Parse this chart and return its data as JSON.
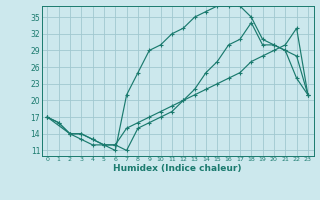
{
  "xlabel": "Humidex (Indice chaleur)",
  "bg_color": "#cce8ed",
  "grid_color": "#a0c8d0",
  "line_color": "#1a7a6e",
  "xlim": [
    -0.5,
    23.5
  ],
  "ylim": [
    10,
    37
  ],
  "yticks": [
    11,
    14,
    17,
    20,
    23,
    26,
    29,
    32,
    35
  ],
  "xticks": [
    0,
    1,
    2,
    3,
    4,
    5,
    6,
    7,
    8,
    9,
    10,
    11,
    12,
    13,
    14,
    15,
    16,
    17,
    18,
    19,
    20,
    21,
    22,
    23
  ],
  "line1_x": [
    0,
    1,
    2,
    3,
    4,
    5,
    6,
    7,
    8,
    9,
    10,
    11,
    12,
    13,
    14,
    15,
    16,
    17,
    18,
    19,
    20,
    21,
    22,
    23
  ],
  "line1_y": [
    17,
    16,
    14,
    14,
    13,
    12,
    12,
    15,
    16,
    17,
    18,
    19,
    20,
    21,
    22,
    23,
    24,
    25,
    27,
    28,
    29,
    30,
    33,
    21
  ],
  "line2_x": [
    0,
    1,
    2,
    3,
    4,
    5,
    6,
    7,
    8,
    9,
    10,
    11,
    12,
    13,
    14,
    15,
    16,
    17,
    18,
    19,
    20,
    21,
    22,
    23
  ],
  "line2_y": [
    17,
    16,
    14,
    13,
    12,
    12,
    11,
    21,
    25,
    29,
    30,
    32,
    33,
    35,
    36,
    37,
    37,
    37,
    35,
    31,
    30,
    29,
    24,
    21
  ],
  "line3_x": [
    0,
    2,
    3,
    4,
    5,
    6,
    7,
    8,
    9,
    10,
    11,
    12,
    13,
    14,
    15,
    16,
    17,
    18,
    19,
    20,
    21,
    22,
    23
  ],
  "line3_y": [
    17,
    14,
    14,
    13,
    12,
    12,
    11,
    15,
    16,
    17,
    18,
    20,
    22,
    25,
    27,
    30,
    31,
    34,
    30,
    30,
    29,
    28,
    21
  ]
}
